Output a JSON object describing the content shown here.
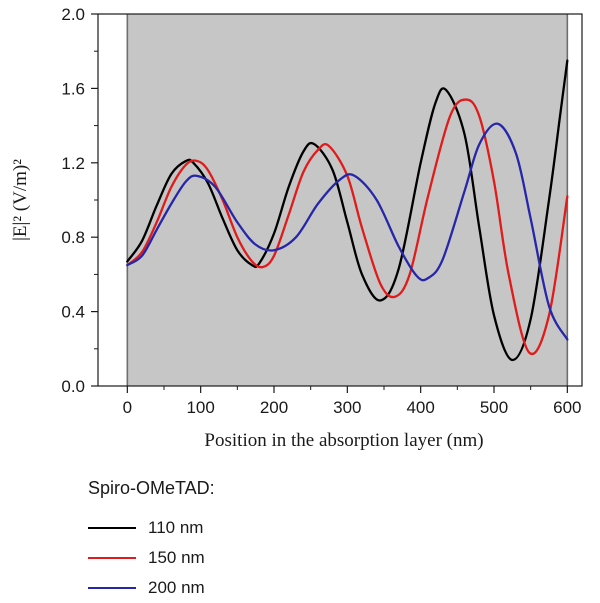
{
  "chart_data": {
    "type": "line",
    "xlabel": "Position in the absorption layer (nm)",
    "ylabel": "|E|² (V/m)²",
    "xlim": [
      -40,
      620
    ],
    "ylim": [
      0,
      2.0
    ],
    "xticks": [
      "0",
      "100",
      "200",
      "300",
      "400",
      "500",
      "600"
    ],
    "yticks": [
      "0.0",
      "0.4",
      "0.8",
      "1.2",
      "1.6",
      "2.0"
    ],
    "shaded_region": [
      0,
      600
    ],
    "shade_color": "#c6c6c6",
    "legend_title": "Spiro-OMeTAD:",
    "series": [
      {
        "name": "110 nm",
        "color": "#000000",
        "x": [
          0,
          20,
          40,
          60,
          80,
          90,
          110,
          130,
          150,
          170,
          180,
          200,
          220,
          240,
          255,
          280,
          300,
          320,
          345,
          370,
          400,
          420,
          435,
          460,
          480,
          500,
          525,
          550,
          575,
          590,
          600
        ],
        "y": [
          0.67,
          0.78,
          0.97,
          1.14,
          1.21,
          1.2,
          1.09,
          0.9,
          0.73,
          0.65,
          0.66,
          0.82,
          1.07,
          1.26,
          1.3,
          1.16,
          0.88,
          0.6,
          0.46,
          0.63,
          1.2,
          1.52,
          1.59,
          1.35,
          0.85,
          0.38,
          0.14,
          0.36,
          1.0,
          1.45,
          1.75
        ]
      },
      {
        "name": "150 nm",
        "color": "#e01b1b",
        "x": [
          0,
          20,
          40,
          60,
          80,
          95,
          110,
          130,
          150,
          170,
          185,
          200,
          220,
          240,
          260,
          275,
          300,
          320,
          345,
          365,
          385,
          410,
          440,
          462,
          480,
          500,
          520,
          548,
          575,
          600
        ],
        "y": [
          0.65,
          0.72,
          0.88,
          1.07,
          1.19,
          1.21,
          1.16,
          1.0,
          0.8,
          0.67,
          0.64,
          0.7,
          0.92,
          1.15,
          1.27,
          1.29,
          1.13,
          0.85,
          0.55,
          0.48,
          0.6,
          1.02,
          1.45,
          1.54,
          1.45,
          1.1,
          0.6,
          0.18,
          0.38,
          1.02
        ]
      },
      {
        "name": "200 nm",
        "color": "#2626a8",
        "x": [
          0,
          20,
          40,
          60,
          80,
          95,
          120,
          150,
          175,
          200,
          230,
          260,
          290,
          310,
          340,
          370,
          395,
          410,
          430,
          460,
          480,
          505,
          530,
          550,
          575,
          600
        ],
        "y": [
          0.65,
          0.7,
          0.84,
          0.98,
          1.1,
          1.13,
          1.07,
          0.88,
          0.76,
          0.73,
          0.8,
          0.98,
          1.11,
          1.13,
          1.0,
          0.75,
          0.59,
          0.58,
          0.68,
          1.05,
          1.3,
          1.41,
          1.25,
          0.9,
          0.43,
          0.25
        ]
      }
    ]
  }
}
